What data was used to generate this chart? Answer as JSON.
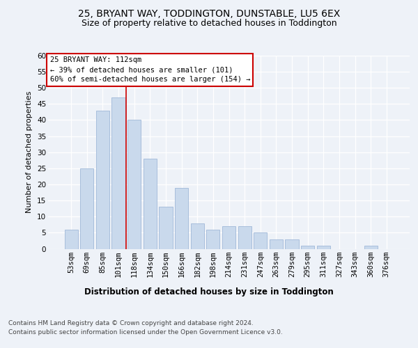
{
  "title": "25, BRYANT WAY, TODDINGTON, DUNSTABLE, LU5 6EX",
  "subtitle": "Size of property relative to detached houses in Toddington",
  "xlabel": "Distribution of detached houses by size in Toddington",
  "ylabel": "Number of detached properties",
  "categories": [
    "53sqm",
    "69sqm",
    "85sqm",
    "101sqm",
    "118sqm",
    "134sqm",
    "150sqm",
    "166sqm",
    "182sqm",
    "198sqm",
    "214sqm",
    "231sqm",
    "247sqm",
    "263sqm",
    "279sqm",
    "295sqm",
    "311sqm",
    "327sqm",
    "343sqm",
    "360sqm",
    "376sqm"
  ],
  "values": [
    6,
    25,
    43,
    47,
    40,
    28,
    13,
    19,
    8,
    6,
    7,
    7,
    5,
    3,
    3,
    1,
    1,
    0,
    0,
    1,
    0
  ],
  "bar_color": "#c9d9ec",
  "bar_edgecolor": "#a0b8d8",
  "vline_x": 3.5,
  "vline_color": "#cc0000",
  "annotation_box_edgecolor": "#cc0000",
  "annotation_line1": "25 BRYANT WAY: 112sqm",
  "annotation_line2": "← 39% of detached houses are smaller (101)",
  "annotation_line3": "60% of semi-detached houses are larger (154) →",
  "ylim": [
    0,
    60
  ],
  "yticks": [
    0,
    5,
    10,
    15,
    20,
    25,
    30,
    35,
    40,
    45,
    50,
    55,
    60
  ],
  "footer1": "Contains HM Land Registry data © Crown copyright and database right 2024.",
  "footer2": "Contains public sector information licensed under the Open Government Licence v3.0.",
  "bg_color": "#eef2f8",
  "plot_bg_color": "#eef2f8",
  "title_fontsize": 10,
  "subtitle_fontsize": 9,
  "xlabel_fontsize": 8.5,
  "ylabel_fontsize": 8,
  "tick_fontsize": 7.5,
  "footer_fontsize": 6.5,
  "annotation_fontsize": 7.5
}
